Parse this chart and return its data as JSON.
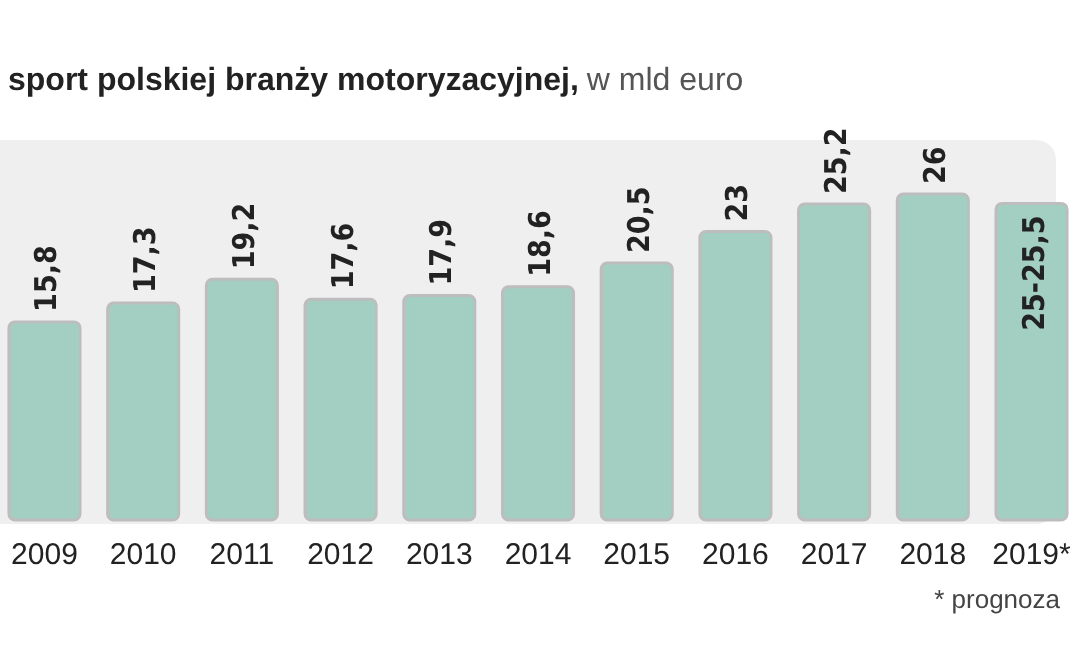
{
  "chart_data": {
    "type": "bar",
    "title": "sport polskiej branży motoryzacyjnej,",
    "subtitle": "w mld euro",
    "categories": [
      "2009",
      "2010",
      "2011",
      "2012",
      "2013",
      "2014",
      "2015",
      "2016",
      "2017",
      "2018",
      "2019*"
    ],
    "values": [
      15.8,
      17.3,
      19.2,
      17.6,
      17.9,
      18.6,
      20.5,
      23,
      25.2,
      26,
      25.25
    ],
    "value_labels": [
      "15,8",
      "17,3",
      "19,2",
      "17,6",
      "17,9",
      "18,6",
      "20,5",
      "23",
      "25,2",
      "26",
      "25-25,5"
    ],
    "color": "#a3cfc3",
    "annotations": [
      "* prognoza"
    ]
  }
}
